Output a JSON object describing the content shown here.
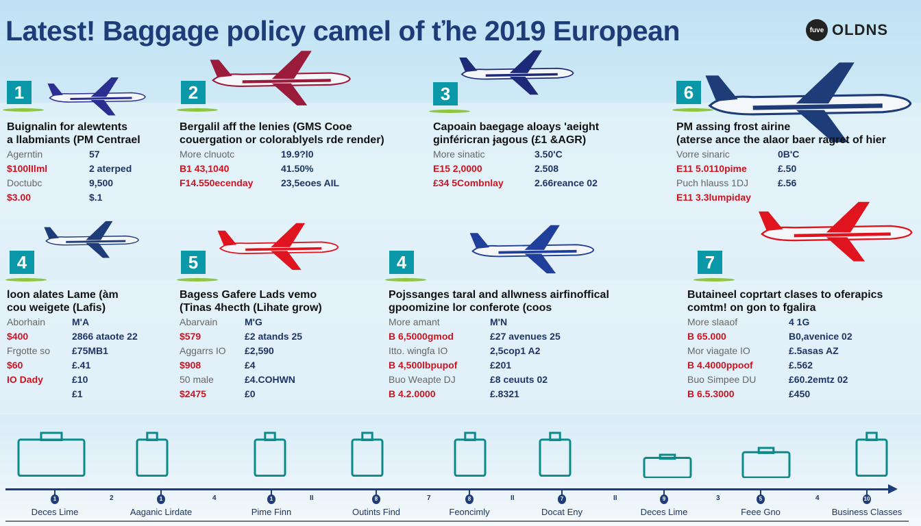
{
  "header": {
    "title": "Latest! Baggage policy camel of ťhe 2019 European",
    "logo_badge": "fuve",
    "logo_text": "OLDNS"
  },
  "colors": {
    "navy": "#1d3c78",
    "teal": "#0a97a8",
    "red": "#d0121f",
    "green": "#8ec63f"
  },
  "cards": [
    {
      "num": "1",
      "title": [
        "Buignalin for alewtents",
        "a llabmiants (PM Centrael"
      ],
      "plane_color": "#2b2f8f",
      "rows": [
        {
          "l": "Agerntin",
          "v": "57",
          "red": false
        },
        {
          "l": "$100lIlml",
          "v": "2 aterped",
          "red": true
        },
        {
          "l": "Doctubc",
          "v": "9,500",
          "red": false
        },
        {
          "l": "$3.00",
          "v": "$.1",
          "red": true
        }
      ]
    },
    {
      "num": "2",
      "title": [
        "Bergalil aff the lenies (GMS Cooe",
        "couergation or colorablyels rde render)"
      ],
      "plane_color": "#9b1b3a",
      "rows": [
        {
          "l": "More clnuotc",
          "v": "19.9?l0",
          "red": false
        },
        {
          "l": "B1 43,1040",
          "v": "41.50%",
          "red": true
        },
        {
          "l": "F14.550ecenday",
          "v": "23,5eoes AIL",
          "red": true
        }
      ]
    },
    {
      "num": "3",
      "title": [
        "Capoain baegage aloays 'aeight",
        "ginféricran ɉagous (£1 &AGR)"
      ],
      "plane_color": "#1d2a78",
      "rows": [
        {
          "l": "More sinatic",
          "v": "3.50'C",
          "red": false
        },
        {
          "l": "E15 2,0000",
          "v": "2.508",
          "red": true
        },
        {
          "l": "£34 5Combnlay",
          "v": "2.66reance 02",
          "red": true
        }
      ]
    },
    {
      "num": "6",
      "title": [
        "PM assing frost airine",
        "(aterse ance the alaor baer ragret of hier"
      ],
      "plane_color": "#1d3c78",
      "rows": [
        {
          "l": "Vorre sinaric",
          "v": "0B'C",
          "red": false
        },
        {
          "l": "E11 5.0110pime",
          "v": "£.50",
          "red": true
        },
        {
          "l": "Puch hlauss 1DJ",
          "v": "£.56",
          "red": false
        },
        {
          "l": "E11 3.3lumpiday",
          "v": "",
          "red": true
        }
      ]
    },
    {
      "num": "4",
      "title": [
        "loon alates Lame (àm",
        "cou weigete (Lafis)"
      ],
      "plane_color": "#1d3c78",
      "rows": [
        {
          "l": "Aborhain",
          "v": "M'A",
          "red": false
        },
        {
          "l": "$400",
          "v": "2866 ataote 22",
          "red": true
        },
        {
          "l": "Frgotte so",
          "v": "£75MB1",
          "red": false
        },
        {
          "l": "$60",
          "v": "£.41",
          "red": true
        },
        {
          "l": "IO Dady",
          "v": "£10",
          "red": true
        },
        {
          "l": "",
          "v": "£1",
          "red": false
        }
      ]
    },
    {
      "num": "5",
      "title": [
        "Bagess Gafere Lads vemo",
        "(Tinas 4hecth (Lihate grow)"
      ],
      "plane_color": "#e0141f",
      "rows": [
        {
          "l": "Abarvain",
          "v": "M'G",
          "red": false
        },
        {
          "l": "$579",
          "v": "£2 atands 25",
          "red": true
        },
        {
          "l": "Aggarrs IO",
          "v": "£2,590",
          "red": false
        },
        {
          "l": "$908",
          "v": "£4",
          "red": true
        },
        {
          "l": "50 male",
          "v": "£4.COHWN",
          "red": false
        },
        {
          "l": "$2475",
          "v": "£0",
          "red": true
        }
      ]
    },
    {
      "num": "4",
      "title": [
        "Pojssanges taral and allwness airfinoffical",
        "gpoomizine lor conferote (coos"
      ],
      "plane_color": "#1f3f9a",
      "rows": [
        {
          "l": "More amant",
          "v": "M'N",
          "red": false
        },
        {
          "l": "B 6,5000gmod",
          "v": "£27 avenues 25",
          "red": true
        },
        {
          "l": "Itto. wingfa IO",
          "v": "2,5cop1 A2",
          "red": false
        },
        {
          "l": "B 4,500lbpupof",
          "v": "£201",
          "red": true
        },
        {
          "l": "Buo Weapte DJ",
          "v": "£8 ceuuts 02",
          "red": false
        },
        {
          "l": "B 4.2.0000",
          "v": "£.8321",
          "red": true
        }
      ]
    },
    {
      "num": "7",
      "title": [
        "Butaineel coprtart clases to oferapics",
        "comtm! on gon to fgalira"
      ],
      "plane_color": "#e0141f",
      "rows": [
        {
          "l": "More slaaof",
          "v": "4 1G",
          "red": false
        },
        {
          "l": "B 65.000",
          "v": "B0,avenice 02",
          "red": true
        },
        {
          "l": "Mor viagate IO",
          "v": "£.5asas AZ",
          "red": false
        },
        {
          "l": "B 4.4000ppoof",
          "v": "£.562",
          "red": true
        },
        {
          "l": "Buo Simpee DU",
          "v": "£60.2emtz 02",
          "red": false
        },
        {
          "l": "B 6.5.3000",
          "v": "£450",
          "red": true
        }
      ]
    }
  ],
  "icons": [
    "suitcase-icon",
    "luggage-icon",
    "backpack-icon",
    "scale-icon",
    "shield-dollar-icon",
    "cabinet-icon",
    "flat-bag-icon",
    "cart-icon",
    "bag-icon"
  ],
  "timeline": {
    "nodes": [
      {
        "n": "1",
        "label": "Deces Lime"
      },
      {
        "n": "1",
        "label": "Aaganic Lirdate"
      },
      {
        "n": "1",
        "label": "Pime Finn"
      },
      {
        "n": "8",
        "label": "Outints Find"
      },
      {
        "n": "8",
        "label": "Feoncimly"
      },
      {
        "n": "7",
        "label": "Docat Eny"
      },
      {
        "n": "9",
        "label": "Deces Lime"
      },
      {
        "n": "5",
        "label": "Feee Gno"
      },
      {
        "n": "10",
        "label": "Business Classes"
      }
    ],
    "ticks": [
      "2",
      "4",
      "II",
      "7",
      "II",
      "II",
      "3",
      "4"
    ]
  }
}
